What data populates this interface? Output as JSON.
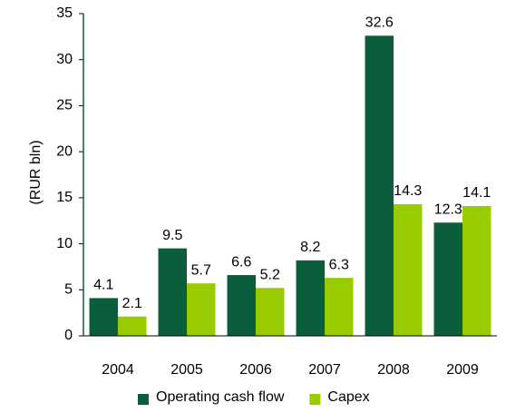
{
  "chart_data": {
    "type": "bar",
    "ylabel": "(RUR bln)",
    "categories": [
      "2004",
      "2005",
      "2006",
      "2007",
      "2008",
      "2009"
    ],
    "series": [
      {
        "name": "Operating cash flow",
        "color": "#0b5e3c",
        "values": [
          4.1,
          9.5,
          6.6,
          8.2,
          32.6,
          12.3
        ]
      },
      {
        "name": "Capex",
        "color": "#99cc00",
        "values": [
          2.1,
          5.7,
          5.2,
          6.3,
          14.3,
          14.1
        ]
      }
    ],
    "ylim": [
      0,
      35
    ],
    "yticks": [
      0,
      5,
      10,
      15,
      20,
      25,
      30,
      35
    ],
    "grid": false,
    "legend": "bottom"
  }
}
